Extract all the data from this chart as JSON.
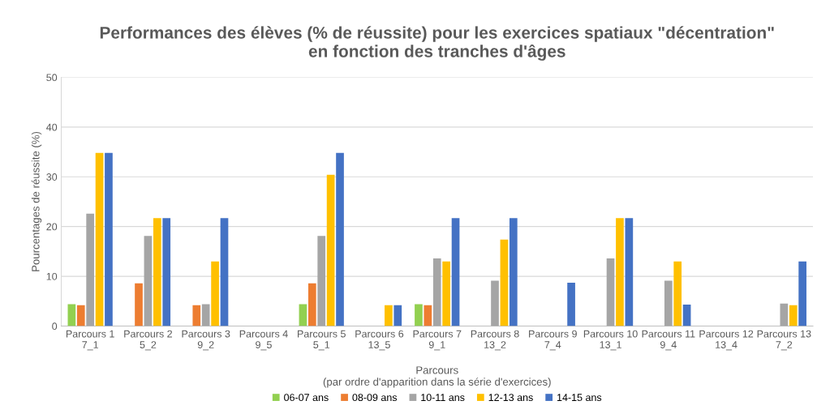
{
  "chart_data": {
    "type": "bar",
    "title": "Performances des élèves (% de réussite) pour les exercices spatiaux \"décentration\"\nen fonction des tranches d'âges",
    "xlabel": "Parcours\n(par ordre d'apparition dans la série d'exercices)",
    "ylabel": "Pourcentages de réussite (%)",
    "categories": [
      "Parcours 1\n7_1",
      "Parcours 2\n5_2",
      "Parcours 3\n9_2",
      "Parcours 4\n9_5",
      "Parcours 5\n5_1",
      "Parcours 6\n13_5",
      "Parcours 7\n9_1",
      "Parcours 8\n13_2",
      "Parcours 9\n7_4",
      "Parcours 10\n13_1",
      "Parcours 11\n9_4",
      "Parcours 12\n13_4",
      "Parcours 13\n7_2"
    ],
    "series": [
      {
        "name": "06-07 ans",
        "color": "#92d050",
        "values": [
          4.4,
          0,
          0,
          0,
          4.4,
          0,
          4.4,
          0,
          0,
          0,
          0,
          0,
          0
        ]
      },
      {
        "name": "08-09 ans",
        "color": "#ed7d31",
        "values": [
          4.2,
          8.6,
          4.2,
          0,
          8.6,
          0,
          4.2,
          0,
          0,
          0,
          0,
          0,
          0
        ]
      },
      {
        "name": "10-11 ans",
        "color": "#a5a5a5",
        "values": [
          22.6,
          18.1,
          4.4,
          0,
          18.1,
          0,
          13.6,
          9.1,
          0,
          13.6,
          9.1,
          0,
          4.5
        ]
      },
      {
        "name": "12-13 ans",
        "color": "#ffc000",
        "values": [
          34.8,
          21.7,
          13.0,
          0,
          30.4,
          4.2,
          13.0,
          17.4,
          0,
          21.7,
          13.0,
          0,
          4.2
        ]
      },
      {
        "name": "14-15 ans",
        "color": "#4472c4",
        "values": [
          34.8,
          21.7,
          21.7,
          0,
          34.8,
          4.2,
          21.7,
          21.7,
          8.7,
          21.7,
          4.3,
          0,
          13.0
        ]
      }
    ],
    "ylim": [
      0,
      50
    ],
    "yticks": [
      0,
      10,
      20,
      30,
      40,
      50
    ],
    "grid": "y",
    "legend": "bottom"
  }
}
